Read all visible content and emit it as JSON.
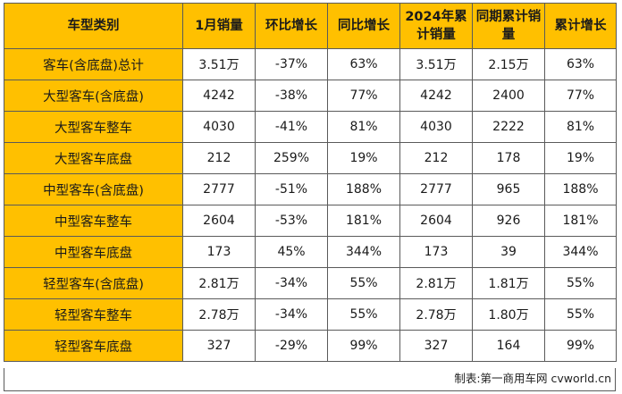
{
  "table": {
    "headers": [
      "车型类别",
      "1月销量",
      "环比增长",
      "同比增长",
      "2024年累计销量",
      "同期累计销量",
      "累计增长"
    ],
    "rows": [
      [
        "客车(含底盘)总计",
        "3.51万",
        "-37%",
        "63%",
        "3.51万",
        "2.15万",
        "63%"
      ],
      [
        "大型客车(含底盘)",
        "4242",
        "-38%",
        "77%",
        "4242",
        "2400",
        "77%"
      ],
      [
        "大型客车整车",
        "4030",
        "-41%",
        "81%",
        "4030",
        "2222",
        "81%"
      ],
      [
        "大型客车底盘",
        "212",
        "259%",
        "19%",
        "212",
        "178",
        "19%"
      ],
      [
        "中型客车(含底盘)",
        "2777",
        "-51%",
        "188%",
        "2777",
        "965",
        "188%"
      ],
      [
        "中型客车整车",
        "2604",
        "-53%",
        "181%",
        "2604",
        "926",
        "181%"
      ],
      [
        "中型客车底盘",
        "173",
        "45%",
        "344%",
        "173",
        "39",
        "344%"
      ],
      [
        "轻型客车(含底盘)",
        "2.81万",
        "-34%",
        "55%",
        "2.81万",
        "1.81万",
        "55%"
      ],
      [
        "轻型客车整车",
        "2.78万",
        "-34%",
        "55%",
        "2.78万",
        "1.80万",
        "55%"
      ],
      [
        "轻型客车底盘",
        "327",
        "-29%",
        "99%",
        "327",
        "164",
        "99%"
      ]
    ]
  },
  "footer": {
    "source": "制表:第一商用车网 cvworld.cn"
  },
  "colors": {
    "header_bg": "#ffc000",
    "category_bg": "#ffc000",
    "border": "#5a5a5a"
  }
}
